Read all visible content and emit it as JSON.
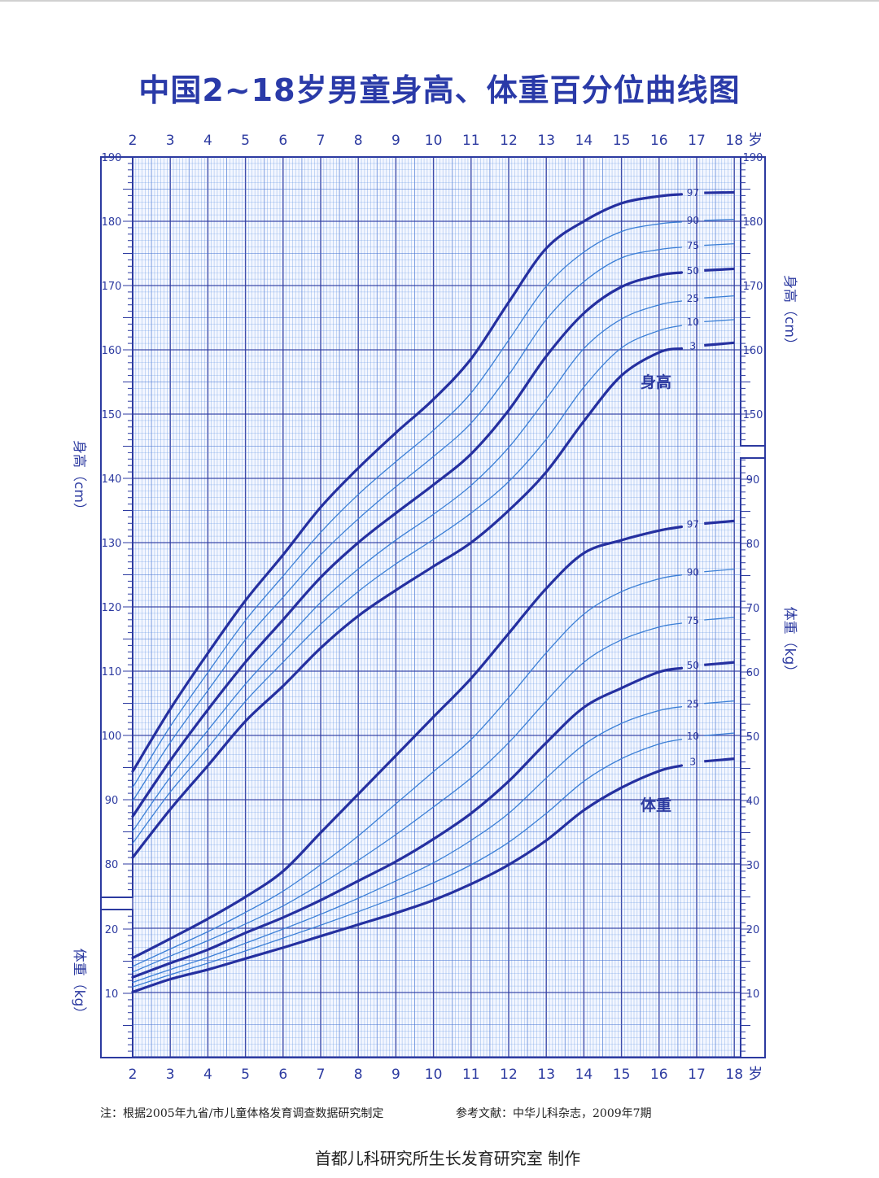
{
  "title": "中国2~18岁男童身高、体重百分位曲线图",
  "footnote_note": "注：根据2005年九省/市儿童体格发育调查数据研究制定",
  "footnote_ref": "参考文献：中华儿科杂志，2009年7期",
  "credit": "首都儿科研究所生长发育研究室  制作",
  "colors": {
    "major": "#2c3aa0",
    "minor": "#5a8fe0",
    "curve_bold": "#2530a0",
    "curve_thin": "#3b7fd6"
  },
  "chart_data": {
    "type": "line",
    "x_ticks": [
      "2",
      "3",
      "4",
      "5",
      "6",
      "7",
      "8",
      "9",
      "10",
      "11",
      "12",
      "13",
      "14",
      "15",
      "16",
      "17",
      "18"
    ],
    "x_unit": "岁",
    "height_panel": {
      "label": "身高",
      "axis_label_left": "身高（cm）",
      "axis_label_right": "身高（cm）",
      "ylim": [
        76,
        190
      ],
      "ticks_left": [
        "80",
        "90",
        "100",
        "110",
        "120",
        "130",
        "140",
        "150",
        "160",
        "170",
        "180",
        "190"
      ],
      "ticks_right": [
        "150",
        "160",
        "170",
        "180",
        "190"
      ],
      "x": [
        2,
        3,
        4,
        5,
        6,
        7,
        8,
        9,
        10,
        11,
        12,
        13,
        14,
        15,
        16,
        17,
        18
      ],
      "series": [
        {
          "name": "97",
          "bold": true,
          "values": [
            94.4,
            104.1,
            112.8,
            121.0,
            128.1,
            135.5,
            141.6,
            147.1,
            152.3,
            158.6,
            167.4,
            175.8,
            180.0,
            182.8,
            183.9,
            184.4,
            184.5
          ]
        },
        {
          "name": "90",
          "bold": false,
          "values": [
            91.9,
            101.4,
            109.8,
            117.9,
            124.8,
            131.6,
            137.5,
            142.6,
            147.5,
            153.3,
            161.5,
            169.9,
            175.2,
            178.4,
            179.6,
            180.1,
            180.3
          ]
        },
        {
          "name": "75",
          "bold": false,
          "values": [
            89.8,
            98.9,
            107.0,
            114.9,
            121.5,
            128.1,
            133.7,
            138.7,
            143.4,
            148.6,
            156.1,
            164.7,
            170.6,
            174.3,
            175.6,
            176.2,
            176.5
          ]
        },
        {
          "name": "50",
          "bold": true,
          "values": [
            87.4,
            96.1,
            104.0,
            111.4,
            118.0,
            124.6,
            130.0,
            134.6,
            139.0,
            143.8,
            150.6,
            159.0,
            165.7,
            169.8,
            171.6,
            172.3,
            172.6
          ]
        },
        {
          "name": "25",
          "bold": false,
          "values": [
            85.1,
            93.5,
            100.8,
            108.0,
            114.4,
            120.7,
            125.9,
            130.4,
            134.4,
            138.9,
            144.8,
            152.4,
            160.2,
            164.8,
            167.0,
            168.0,
            168.4
          ]
        },
        {
          "name": "10",
          "bold": false,
          "values": [
            83.2,
            91.2,
            98.1,
            105.3,
            111.4,
            117.3,
            122.4,
            126.7,
            130.5,
            134.6,
            139.5,
            146.1,
            154.2,
            160.3,
            163.0,
            164.3,
            164.7
          ]
        },
        {
          "name": "3",
          "bold": true,
          "values": [
            81.0,
            88.5,
            95.3,
            102.2,
            107.7,
            113.6,
            118.6,
            122.6,
            126.3,
            130.0,
            135.0,
            141.0,
            148.9,
            156.0,
            159.6,
            160.6,
            161.1
          ]
        }
      ]
    },
    "weight_panel": {
      "label": "体重",
      "axis_label_left": "体重（kg）",
      "axis_label_right": "体重（kg）",
      "ticks_left": [
        "10",
        "20"
      ],
      "ticks_right": [
        "10",
        "20",
        "30",
        "40",
        "50",
        "60",
        "70",
        "80",
        "90"
      ],
      "left_ylim": [
        0,
        24
      ],
      "right_ylim": [
        0,
        94
      ],
      "x": [
        2,
        3,
        4,
        5,
        6,
        7,
        8,
        9,
        10,
        11,
        12,
        13,
        14,
        15,
        16,
        17,
        18
      ],
      "series": [
        {
          "name": "97",
          "bold": true,
          "values": [
            15.5,
            18.5,
            21.6,
            25.0,
            29.0,
            35.0,
            41.0,
            47.0,
            53.0,
            59.0,
            66.0,
            73.0,
            78.5,
            80.5,
            82.0,
            83.0,
            83.5
          ]
        },
        {
          "name": "90",
          "bold": false,
          "values": [
            14.2,
            16.9,
            19.6,
            22.6,
            25.9,
            30.0,
            34.5,
            39.5,
            44.5,
            49.5,
            56.0,
            63.0,
            69.0,
            72.5,
            74.5,
            75.5,
            76.0
          ]
        },
        {
          "name": "75",
          "bold": false,
          "values": [
            13.3,
            15.8,
            18.2,
            20.8,
            23.6,
            27.0,
            30.7,
            34.7,
            39.0,
            43.5,
            49.0,
            55.5,
            61.5,
            65.0,
            67.0,
            68.0,
            68.5
          ]
        },
        {
          "name": "50",
          "bold": true,
          "values": [
            12.5,
            14.7,
            16.8,
            19.4,
            21.8,
            24.5,
            27.5,
            30.5,
            34.0,
            38.0,
            43.0,
            49.0,
            54.5,
            57.5,
            60.0,
            61.0,
            61.5
          ]
        },
        {
          "name": "25",
          "bold": false,
          "values": [
            11.7,
            13.7,
            15.6,
            17.8,
            20.0,
            22.3,
            24.8,
            27.5,
            30.3,
            33.8,
            38.0,
            43.5,
            48.7,
            52.0,
            54.0,
            55.0,
            55.5
          ]
        },
        {
          "name": "10",
          "bold": false,
          "values": [
            11.0,
            12.9,
            14.7,
            16.6,
            18.6,
            20.6,
            22.7,
            24.9,
            27.2,
            30.0,
            33.5,
            38.0,
            43.0,
            46.5,
            48.8,
            50.0,
            50.5
          ]
        },
        {
          "name": "3",
          "bold": true,
          "values": [
            10.2,
            12.2,
            13.7,
            15.4,
            17.1,
            18.9,
            20.7,
            22.5,
            24.5,
            27.0,
            30.0,
            33.8,
            38.5,
            42.0,
            44.6,
            46.0,
            46.5
          ]
        }
      ]
    }
  }
}
